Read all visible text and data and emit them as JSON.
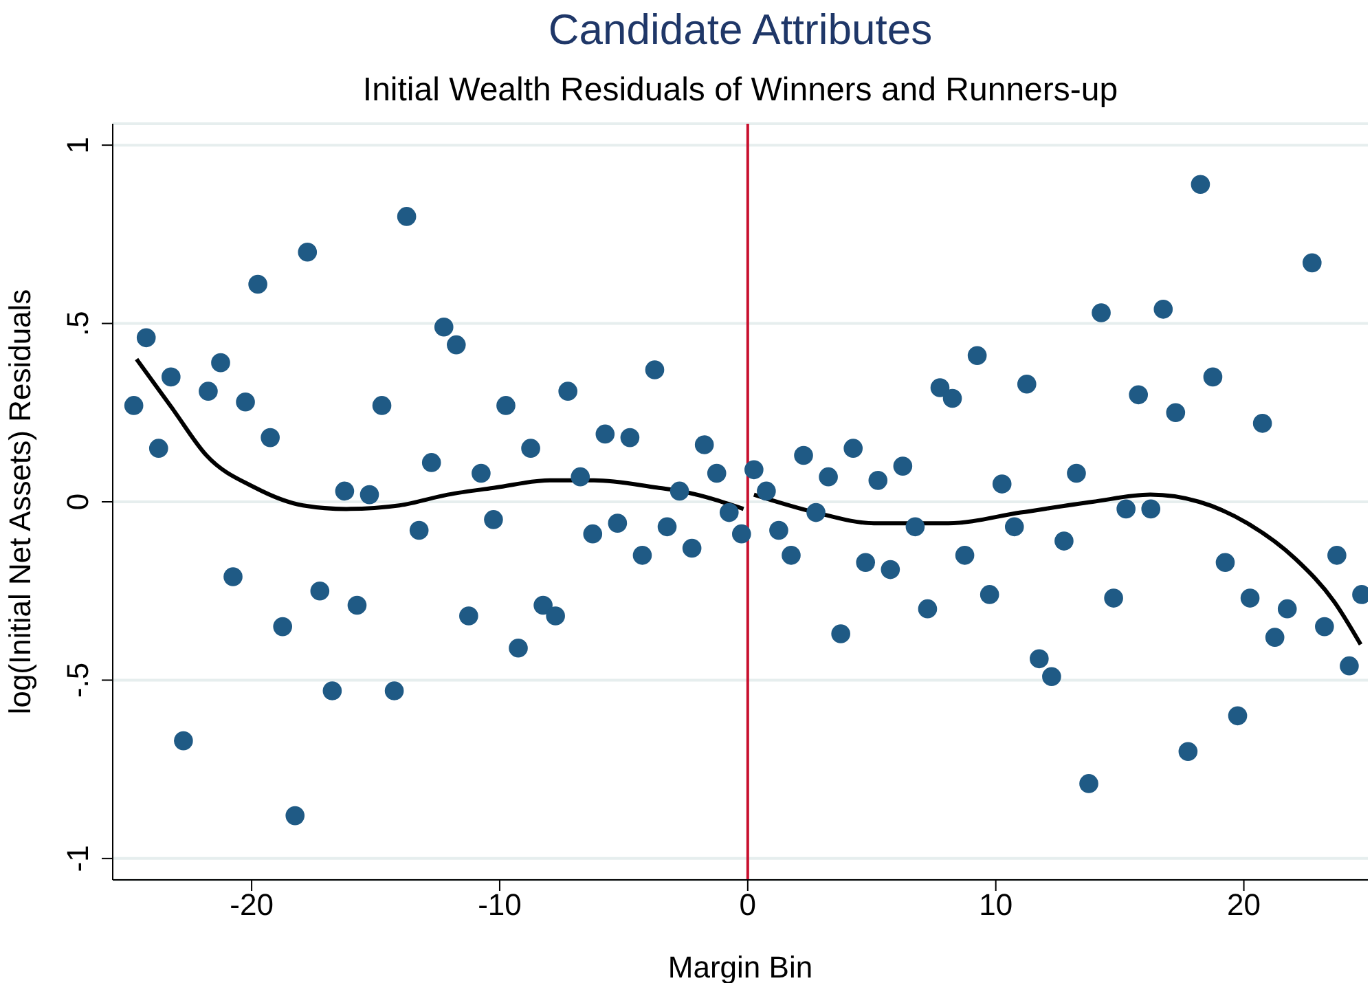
{
  "chart_data": {
    "type": "scatter",
    "title": "Candidate Attributes",
    "subtitle": "Initial Wealth Residuals of Winners and Runners-up",
    "xlabel": "Margin Bin",
    "ylabel": "log(Initial Net Assets) Residuals",
    "xlim": [
      -25.6,
      25
    ],
    "xticks": [
      -20,
      -10,
      0,
      10,
      20
    ],
    "ylim": [
      -1.06,
      1.06
    ],
    "yticks": [
      {
        "value": -1,
        "label": "-1"
      },
      {
        "value": -0.5,
        "label": "-.5"
      },
      0,
      {
        "value": 0.5,
        "label": ".5"
      },
      1
    ],
    "grid": "y",
    "legend": false,
    "ref_lines": [
      {
        "axis": "x",
        "value": 0,
        "color": "#c8102e"
      }
    ],
    "series": [
      {
        "marker": "circle",
        "color": "#1f5a85",
        "x": [
          -24.75,
          -24.25,
          -23.75,
          -23.25,
          -22.75,
          -21.75,
          -21.25,
          -20.75,
          -20.25,
          -19.75,
          -19.25,
          -18.75,
          -18.25,
          -17.75,
          -17.25,
          -16.75,
          -16.25,
          -15.75,
          -15.25,
          -14.75,
          -14.25,
          -13.75,
          -13.25,
          -12.75,
          -12.25,
          -11.75,
          -11.25,
          -10.75,
          -10.25,
          -9.75,
          -9.25,
          -8.75,
          -8.25,
          -7.75,
          -7.25,
          -6.75,
          -6.25,
          -5.75,
          -5.25,
          -4.75,
          -4.25,
          -3.75,
          -3.25,
          -2.75,
          -2.25,
          -1.75,
          -1.25,
          -0.75,
          -0.25,
          0.25,
          0.75,
          1.25,
          1.75,
          2.25,
          2.75,
          3.25,
          3.75,
          4.25,
          4.75,
          5.25,
          5.75,
          6.25,
          6.75,
          7.25,
          7.75,
          8.25,
          8.75,
          9.25,
          9.75,
          10.25,
          10.75,
          11.25,
          11.75,
          12.25,
          12.75,
          13.25,
          13.75,
          14.25,
          14.75,
          15.25,
          15.75,
          16.25,
          16.75,
          17.25,
          17.75,
          18.25,
          18.75,
          19.25,
          19.75,
          20.25,
          20.75,
          21.25,
          21.75,
          22.75,
          23.25,
          23.75,
          24.25,
          24.75
        ],
        "values": [
          0.27,
          0.46,
          0.15,
          0.35,
          -0.67,
          0.31,
          0.39,
          -0.21,
          0.28,
          0.61,
          0.18,
          -0.35,
          -0.88,
          0.7,
          -0.25,
          -0.53,
          0.03,
          -0.29,
          0.02,
          0.27,
          -0.53,
          0.8,
          -0.08,
          0.11,
          0.49,
          0.44,
          -0.32,
          0.08,
          -0.05,
          0.27,
          -0.41,
          0.15,
          -0.29,
          -0.32,
          0.31,
          0.07,
          -0.09,
          0.19,
          -0.06,
          0.18,
          -0.15,
          0.37,
          -0.07,
          0.03,
          -0.13,
          0.16,
          0.08,
          -0.03,
          -0.09,
          0.09,
          0.03,
          -0.08,
          -0.15,
          0.13,
          -0.03,
          0.07,
          -0.37,
          0.15,
          -0.17,
          0.06,
          -0.19,
          0.1,
          -0.07,
          -0.3,
          0.32,
          0.29,
          -0.15,
          0.41,
          -0.26,
          0.05,
          -0.07,
          0.33,
          -0.44,
          -0.49,
          -0.11,
          0.08,
          -0.79,
          0.53,
          -0.27,
          -0.02,
          0.3,
          -0.02,
          0.54,
          0.25,
          -0.7,
          0.89,
          0.35,
          -0.17,
          -0.6,
          -0.27,
          0.22,
          -0.38,
          -0.3,
          0.67,
          -0.35,
          -0.15,
          -0.46,
          -0.26
        ]
      },
      {
        "type": "line",
        "color": "#000000",
        "x": [
          -24.64,
          -23.18,
          -21.82,
          -19.87,
          -17.93,
          -16.18,
          -14.04,
          -12.1,
          -10.16,
          -7.98,
          -6.2,
          -3.67,
          -2.7,
          -0.17
        ],
        "values": [
          0.4,
          0.26,
          0.13,
          0.04,
          -0.01,
          -0.02,
          -0.01,
          0.02,
          0.04,
          0.06,
          0.06,
          0.04,
          0.03,
          -0.02
        ]
      },
      {
        "type": "line",
        "color": "#000000",
        "x": [
          0.25,
          2.74,
          5.08,
          6.63,
          8.09,
          11.0,
          13.9,
          16.23,
          18.2,
          20.14,
          22.08,
          23.64,
          24.71
        ],
        "values": [
          0.02,
          -0.03,
          -0.06,
          -0.06,
          -0.06,
          -0.03,
          0.0,
          0.02,
          0.0,
          -0.06,
          -0.16,
          -0.28,
          -0.4
        ]
      }
    ]
  }
}
